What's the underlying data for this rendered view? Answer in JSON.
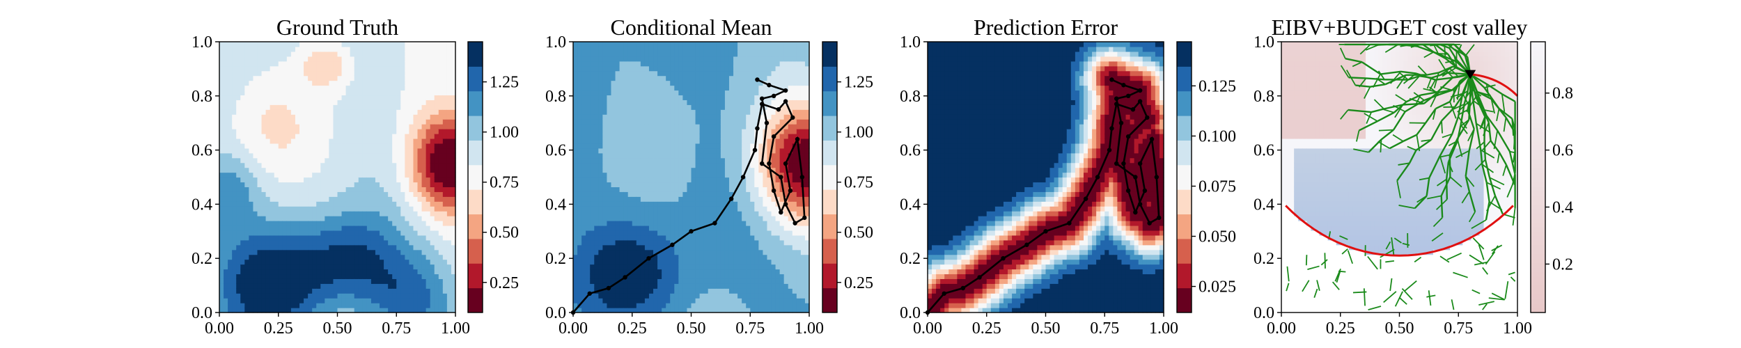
{
  "colors": {
    "rdbu_bins": [
      "#67001f",
      "#b2182b",
      "#d6604d",
      "#f4a582",
      "#fddbc7",
      "#f7f7f7",
      "#d1e5f0",
      "#92c5de",
      "#4393c3",
      "#2166ac",
      "#053061"
    ],
    "path_color": "#000000",
    "tree_color": "#1a8a1a",
    "boundary_color": "#e01010"
  },
  "chart_data": [
    {
      "type": "heatmap",
      "title": "Ground Truth",
      "xlabel": "",
      "ylabel": "",
      "xlim": [
        0,
        1
      ],
      "ylim": [
        0,
        1
      ],
      "xticks": [
        "0.00",
        "0.25",
        "0.50",
        "0.75",
        "1.00"
      ],
      "yticks": [
        "0.0",
        "0.2",
        "0.4",
        "0.6",
        "0.8",
        "1.0"
      ],
      "colorbar": {
        "range": [
          0.1,
          1.45
        ],
        "ticks": [
          "0.25",
          "0.50",
          "0.75",
          "1.00",
          "1.25"
        ],
        "tick_values": [
          0.25,
          0.5,
          0.75,
          1.0,
          1.25
        ]
      },
      "field": {
        "base": 0.9,
        "blobs": [
          {
            "x": 0.97,
            "y": 0.55,
            "amp": -0.85,
            "sx": 0.12,
            "sy": 0.13
          },
          {
            "x": 0.45,
            "y": 0.92,
            "amp": -0.3,
            "sx": 0.08,
            "sy": 0.07
          },
          {
            "x": 0.22,
            "y": 0.1,
            "amp": 0.5,
            "sx": 0.17,
            "sy": 0.15
          },
          {
            "x": 0.55,
            "y": 0.2,
            "amp": 0.4,
            "sx": 0.15,
            "sy": 0.12
          },
          {
            "x": 0.8,
            "y": 0.05,
            "amp": 0.35,
            "sx": 0.14,
            "sy": 0.12
          },
          {
            "x": 0.05,
            "y": 0.45,
            "amp": 0.25,
            "sx": 0.08,
            "sy": 0.1
          },
          {
            "x": 0.2,
            "y": 0.7,
            "amp": -0.15,
            "sx": 0.15,
            "sy": 0.12
          }
        ]
      }
    },
    {
      "type": "heatmap",
      "title": "Conditional Mean",
      "xlabel": "",
      "ylabel": "",
      "xlim": [
        0,
        1
      ],
      "ylim": [
        0,
        1
      ],
      "xticks": [
        "0.00",
        "0.25",
        "0.50",
        "0.75",
        "1.00"
      ],
      "yticks": [
        "0.0",
        "0.2",
        "0.4",
        "0.6",
        "0.8",
        "1.0"
      ],
      "colorbar": {
        "range": [
          0.1,
          1.45
        ],
        "ticks": [
          "0.25",
          "0.50",
          "0.75",
          "1.00",
          "1.25"
        ],
        "tick_values": [
          0.25,
          0.5,
          0.75,
          1.0,
          1.25
        ]
      },
      "field": {
        "base": 1.1,
        "blobs": [
          {
            "x": 0.98,
            "y": 0.55,
            "amp": -1.0,
            "sx": 0.15,
            "sy": 0.16
          },
          {
            "x": 0.25,
            "y": 0.15,
            "amp": 0.3,
            "sx": 0.15,
            "sy": 0.12
          }
        ]
      },
      "path": [
        [
          0.0,
          0.0
        ],
        [
          0.07,
          0.07
        ],
        [
          0.15,
          0.09
        ],
        [
          0.22,
          0.13
        ],
        [
          0.32,
          0.2
        ],
        [
          0.42,
          0.25
        ],
        [
          0.5,
          0.3
        ],
        [
          0.6,
          0.33
        ],
        [
          0.67,
          0.42
        ],
        [
          0.72,
          0.5
        ],
        [
          0.77,
          0.6
        ],
        [
          0.78,
          0.68
        ],
        [
          0.8,
          0.77
        ],
        [
          0.87,
          0.75
        ],
        [
          0.9,
          0.78
        ],
        [
          0.93,
          0.72
        ],
        [
          0.85,
          0.65
        ],
        [
          0.83,
          0.55
        ],
        [
          0.85,
          0.45
        ],
        [
          0.88,
          0.37
        ],
        [
          0.92,
          0.45
        ],
        [
          0.9,
          0.55
        ],
        [
          0.95,
          0.64
        ],
        [
          0.97,
          0.5
        ],
        [
          0.98,
          0.35
        ],
        [
          0.94,
          0.33
        ],
        [
          0.9,
          0.4
        ],
        [
          0.88,
          0.5
        ],
        [
          0.8,
          0.55
        ],
        [
          0.82,
          0.7
        ],
        [
          0.8,
          0.79
        ],
        [
          0.85,
          0.8
        ],
        [
          0.9,
          0.82
        ],
        [
          0.83,
          0.84
        ],
        [
          0.78,
          0.86
        ]
      ]
    },
    {
      "type": "heatmap",
      "title": "Prediction Error",
      "xlabel": "",
      "ylabel": "",
      "xlim": [
        0,
        1
      ],
      "ylim": [
        0,
        1
      ],
      "xticks": [
        "0.00",
        "0.25",
        "0.50",
        "0.75",
        "1.00"
      ],
      "yticks": [
        "0.0",
        "0.2",
        "0.4",
        "0.6",
        "0.8",
        "1.0"
      ],
      "colorbar": {
        "range": [
          0.012,
          0.147
        ],
        "ticks": [
          "0.025",
          "0.050",
          "0.075",
          "0.100",
          "0.125"
        ],
        "tick_values": [
          0.025,
          0.05,
          0.075,
          0.1,
          0.125
        ]
      },
      "field": {
        "base": 0.145,
        "path_sigma": 0.08,
        "path_amp": -0.13
      },
      "path": [
        [
          0.0,
          0.0
        ],
        [
          0.07,
          0.07
        ],
        [
          0.15,
          0.09
        ],
        [
          0.22,
          0.13
        ],
        [
          0.32,
          0.2
        ],
        [
          0.42,
          0.25
        ],
        [
          0.5,
          0.3
        ],
        [
          0.6,
          0.33
        ],
        [
          0.67,
          0.42
        ],
        [
          0.72,
          0.5
        ],
        [
          0.77,
          0.6
        ],
        [
          0.78,
          0.68
        ],
        [
          0.8,
          0.77
        ],
        [
          0.87,
          0.75
        ],
        [
          0.9,
          0.78
        ],
        [
          0.93,
          0.72
        ],
        [
          0.85,
          0.65
        ],
        [
          0.83,
          0.55
        ],
        [
          0.85,
          0.45
        ],
        [
          0.88,
          0.37
        ],
        [
          0.92,
          0.45
        ],
        [
          0.9,
          0.55
        ],
        [
          0.95,
          0.64
        ],
        [
          0.97,
          0.5
        ],
        [
          0.98,
          0.35
        ],
        [
          0.94,
          0.33
        ],
        [
          0.9,
          0.4
        ],
        [
          0.88,
          0.5
        ],
        [
          0.8,
          0.55
        ],
        [
          0.82,
          0.7
        ],
        [
          0.8,
          0.79
        ],
        [
          0.85,
          0.8
        ],
        [
          0.9,
          0.82
        ],
        [
          0.83,
          0.84
        ],
        [
          0.78,
          0.86
        ]
      ]
    },
    {
      "type": "heatmap",
      "title": "EIBV+BUDGET cost valley",
      "xlabel": "",
      "ylabel": "",
      "xlim": [
        0,
        1
      ],
      "ylim": [
        0,
        1
      ],
      "xticks": [
        "0.00",
        "0.25",
        "0.50",
        "0.75",
        "1.00"
      ],
      "yticks": [
        "0.0",
        "0.2",
        "0.4",
        "0.6",
        "0.8",
        "1.0"
      ],
      "colorbar": {
        "range": [
          0.03,
          0.98
        ],
        "ticks": [
          "0.2",
          "0.4",
          "0.6",
          "0.8"
        ],
        "tick_values": [
          0.2,
          0.4,
          0.6,
          0.8
        ],
        "continuous": true
      },
      "field": {
        "base": 0.6
      },
      "agent": [
        0.8,
        0.88
      ],
      "budget_center": [
        0.5,
        0.93
      ],
      "budget_radius": 0.72,
      "tree_root": [
        0.8,
        0.88
      ]
    }
  ]
}
